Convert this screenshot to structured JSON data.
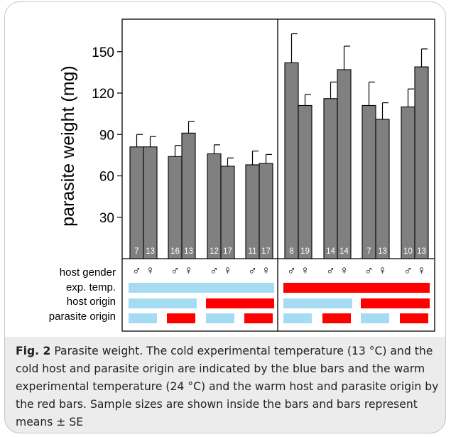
{
  "chart_data": {
    "type": "bar",
    "ylabel": "parasite weight (mg)",
    "yticks": [
      30,
      60,
      90,
      120,
      150
    ],
    "ylim": [
      0,
      175
    ],
    "groups": [
      {
        "bars": [
          {
            "sex": "♂",
            "value": 81,
            "se": 9,
            "n": "7"
          },
          {
            "sex": "♀",
            "value": 81,
            "se": 7.5,
            "n": "13"
          }
        ]
      },
      {
        "bars": [
          {
            "sex": "♂",
            "value": 74,
            "se": 8,
            "n": "16"
          },
          {
            "sex": "♀",
            "value": 91,
            "se": 8.5,
            "n": "13"
          }
        ]
      },
      {
        "bars": [
          {
            "sex": "♂",
            "value": 76,
            "se": 6.5,
            "n": "12"
          },
          {
            "sex": "♀",
            "value": 67,
            "se": 6,
            "n": "17"
          }
        ]
      },
      {
        "bars": [
          {
            "sex": "♂",
            "value": 68,
            "se": 10,
            "n": "11"
          },
          {
            "sex": "♀",
            "value": 69,
            "se": 6.5,
            "n": "17"
          }
        ]
      },
      {
        "bars": [
          {
            "sex": "♂",
            "value": 142,
            "se": 21,
            "n": "8"
          },
          {
            "sex": "♀",
            "value": 111,
            "se": 8,
            "n": "19"
          }
        ]
      },
      {
        "bars": [
          {
            "sex": "♂",
            "value": 116,
            "se": 12,
            "n": "14"
          },
          {
            "sex": "♀",
            "value": 137,
            "se": 17,
            "n": "14"
          }
        ]
      },
      {
        "bars": [
          {
            "sex": "♂",
            "value": 111,
            "se": 17,
            "n": "7"
          },
          {
            "sex": "♀",
            "value": 101,
            "se": 12,
            "n": "13"
          }
        ]
      },
      {
        "bars": [
          {
            "sex": "♂",
            "value": 110,
            "se": 13,
            "n": "10"
          },
          {
            "sex": "♀",
            "value": 139,
            "se": 13,
            "n": "13"
          }
        ]
      }
    ],
    "row_labels": [
      "host gender",
      "exp. temp.",
      "host origin",
      "parasite origin"
    ],
    "exp_temp": [
      "cold",
      "cold",
      "cold",
      "cold",
      "warm",
      "warm",
      "warm",
      "warm"
    ],
    "host_origin": [
      "cold",
      "cold",
      "warm",
      "warm",
      "cold",
      "cold",
      "warm",
      "warm"
    ],
    "parasite_origin": [
      "cold",
      "warm",
      "cold",
      "warm",
      "cold",
      "warm",
      "cold",
      "warm"
    ],
    "colors": {
      "bar": "#808080",
      "cold": "#a6dcf3",
      "warm": "#ff0000"
    }
  },
  "caption": {
    "label": "Fig. 2",
    "text": "Parasite weight. The cold experimental temperature (13 °C) and the cold host and parasite origin are indicated by the blue bars and the warm experimental temperature (24 °C) and the warm host and parasite origin by the red bars. Sample sizes are shown inside the bars and bars represent means ± SE"
  }
}
